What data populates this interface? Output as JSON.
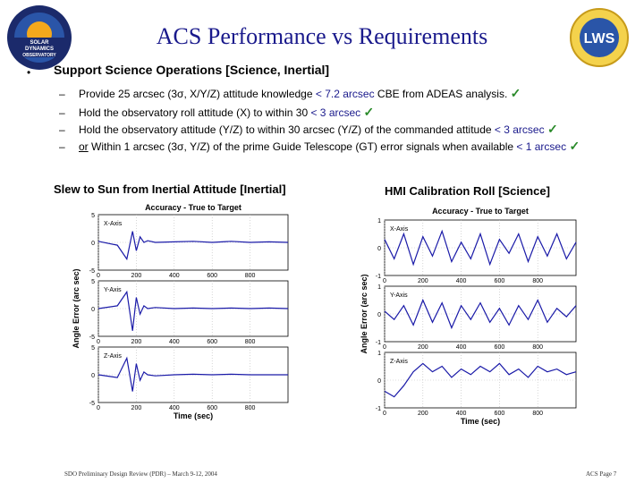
{
  "slide": {
    "title": "ACS Performance vs Requirements",
    "left_logo_text": [
      "SOLAR",
      "DYNAMICS",
      "OBSERVATORY"
    ],
    "right_logo_text": "LWS",
    "bullet_marker": "•",
    "bullet_main": "Support Science Operations [Science, Inertial]",
    "subs": [
      {
        "dash": "–",
        "pre": "",
        "text": "Provide 25 arcsec (3σ, X/Y/Z) attitude knowledge ",
        "req": "< 7.2 arcsec",
        "post": " CBE from ADEAS analysis.",
        "check": "✓"
      },
      {
        "dash": "–",
        "pre": "",
        "text": "Hold the observatory roll attitude (X) to within 30 ",
        "req": "< 3 arcsec",
        "post": "",
        "check": "✓"
      },
      {
        "dash": "–",
        "pre": "",
        "text": "Hold the observatory attitude (Y/Z) to within 30 arcsec (Y/Z) of the commanded attitude ",
        "req": "< 3 arcsec",
        "post": "",
        "check": "✓"
      },
      {
        "dash": "–",
        "pre": "or",
        "text": " Within 1 arcsec (3σ, Y/Z) of the prime Guide Telescope (GT) error signals when available ",
        "req": "< 1 arcsec",
        "post": "",
        "check": "✓"
      }
    ],
    "left_caption": "Slew to Sun from Inertial Attitude [Inertial]",
    "right_caption": "HMI Calibration Roll  [Science]",
    "footer_left": "SDO Preliminary Design Review (PDR) – March 9-12, 2004",
    "footer_right": "ACS Page 7"
  },
  "chart_data": [
    {
      "type": "line",
      "title": "Accuracy - True to Target",
      "xlabel": "Time (sec)",
      "ylabel": "Angle Error (arc sec)",
      "xlim": [
        0,
        1000
      ],
      "x_ticks": [
        "0",
        "200",
        "400",
        "600",
        "800"
      ],
      "panels": [
        {
          "name": "X-Axis",
          "ylim": [
            -5,
            5
          ],
          "y_ticks": [
            "5",
            "0",
            "-5"
          ],
          "x": [
            0,
            100,
            150,
            180,
            200,
            220,
            240,
            260,
            300,
            400,
            500,
            600,
            700,
            800,
            900,
            1000
          ],
          "y": [
            0.2,
            -0.5,
            -3,
            2,
            -1.5,
            1,
            0,
            0.3,
            0,
            0.1,
            0.2,
            0,
            0.2,
            0,
            0.1,
            0
          ]
        },
        {
          "name": "Y-Axis",
          "ylim": [
            -5,
            5
          ],
          "y_ticks": [
            "5",
            "0",
            "-5"
          ],
          "x": [
            0,
            100,
            150,
            180,
            200,
            220,
            240,
            260,
            300,
            400,
            500,
            600,
            700,
            800,
            900,
            1000
          ],
          "y": [
            0,
            0.5,
            3,
            -4,
            2,
            -1,
            0.5,
            0,
            0.2,
            0,
            0.1,
            0,
            0.1,
            0,
            0.1,
            0
          ]
        },
        {
          "name": "Z-Axis",
          "ylim": [
            -5,
            5
          ],
          "y_ticks": [
            "5",
            "0",
            "-5"
          ],
          "x": [
            0,
            100,
            150,
            180,
            200,
            220,
            240,
            260,
            300,
            400,
            500,
            600,
            700,
            800,
            900,
            1000
          ],
          "y": [
            0,
            -0.5,
            3,
            -3,
            2,
            -1,
            0.5,
            0,
            -0.2,
            0,
            0.1,
            0,
            0.1,
            0,
            0,
            0
          ]
        }
      ]
    },
    {
      "type": "line",
      "title": "Accuracy - True to Target",
      "xlabel": "Time (sec)",
      "ylabel": "Angle Error (arc sec)",
      "xlim": [
        0,
        1000
      ],
      "x_ticks": [
        "0",
        "200",
        "400",
        "600",
        "800"
      ],
      "panels": [
        {
          "name": "X-Axis",
          "ylim": [
            -1,
            1
          ],
          "y_ticks": [
            "1",
            "0",
            "-1"
          ],
          "x": [
            0,
            50,
            100,
            150,
            200,
            250,
            300,
            350,
            400,
            450,
            500,
            550,
            600,
            650,
            700,
            750,
            800,
            850,
            900,
            950,
            1000
          ],
          "y": [
            0.3,
            -0.4,
            0.5,
            -0.6,
            0.4,
            -0.3,
            0.6,
            -0.5,
            0.2,
            -0.4,
            0.5,
            -0.6,
            0.3,
            -0.2,
            0.5,
            -0.5,
            0.4,
            -0.3,
            0.5,
            -0.4,
            0.2
          ]
        },
        {
          "name": "Y-Axis",
          "ylim": [
            -1,
            1
          ],
          "y_ticks": [
            "1",
            "0",
            "-1"
          ],
          "x": [
            0,
            50,
            100,
            150,
            200,
            250,
            300,
            350,
            400,
            450,
            500,
            550,
            600,
            650,
            700,
            750,
            800,
            850,
            900,
            950,
            1000
          ],
          "y": [
            0.1,
            -0.2,
            0.3,
            -0.4,
            0.5,
            -0.3,
            0.4,
            -0.5,
            0.3,
            -0.2,
            0.4,
            -0.3,
            0.2,
            -0.4,
            0.3,
            -0.2,
            0.5,
            -0.3,
            0.2,
            -0.1,
            0.3
          ]
        },
        {
          "name": "Z-Axis",
          "ylim": [
            -1,
            1
          ],
          "y_ticks": [
            "1",
            "0",
            "-1"
          ],
          "x": [
            0,
            50,
            100,
            150,
            200,
            250,
            300,
            350,
            400,
            450,
            500,
            550,
            600,
            650,
            700,
            750,
            800,
            850,
            900,
            950,
            1000
          ],
          "y": [
            -0.4,
            -0.6,
            -0.2,
            0.3,
            0.6,
            0.3,
            0.5,
            0.1,
            0.4,
            0.2,
            0.5,
            0.3,
            0.6,
            0.2,
            0.4,
            0.1,
            0.5,
            0.3,
            0.4,
            0.2,
            0.3
          ]
        }
      ]
    }
  ]
}
